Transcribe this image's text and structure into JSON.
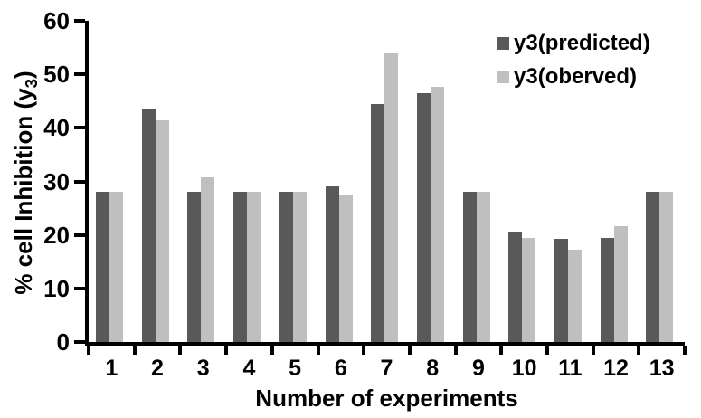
{
  "figure": {
    "background": "#ffffff"
  },
  "y_axis": {
    "title_prefix": "% cell Inhibition (y",
    "title_sub": "3",
    "title_suffix": ")",
    "tick_values": [
      0,
      10,
      20,
      30,
      40,
      50,
      60
    ]
  },
  "x_axis": {
    "title": "Number of experiments",
    "tick_labels": [
      "1",
      "2",
      "3",
      "4",
      "5",
      "6",
      "7",
      "8",
      "9",
      "10",
      "11",
      "12",
      "13"
    ]
  },
  "legend": {
    "items": [
      {
        "label": "y3(predicted)",
        "color": "#595959"
      },
      {
        "label": "y3(oberved)",
        "color": "#c0c0c0"
      }
    ]
  },
  "chart_data": {
    "type": "bar",
    "title": "",
    "xlabel": "Number of experiments",
    "ylabel": "% cell Inhibition (y3)",
    "categories": [
      1,
      2,
      3,
      4,
      5,
      6,
      7,
      8,
      9,
      10,
      11,
      12,
      13
    ],
    "series": [
      {
        "name": "y3(predicted)",
        "color": "#595959",
        "values": [
          28.0,
          43.5,
          28.0,
          28.0,
          28.0,
          29.0,
          44.5,
          46.5,
          28.0,
          20.7,
          19.3,
          19.5,
          28.0
        ]
      },
      {
        "name": "y3(oberved)",
        "color": "#bfbfbf",
        "values": [
          28.0,
          41.4,
          30.7,
          28.0,
          28.0,
          27.6,
          54.0,
          47.6,
          28.0,
          19.4,
          17.3,
          21.6,
          28.0
        ]
      }
    ],
    "ylim": [
      0,
      60
    ],
    "y_tick_step": 10,
    "grid": false,
    "legend_position": "top-right"
  }
}
